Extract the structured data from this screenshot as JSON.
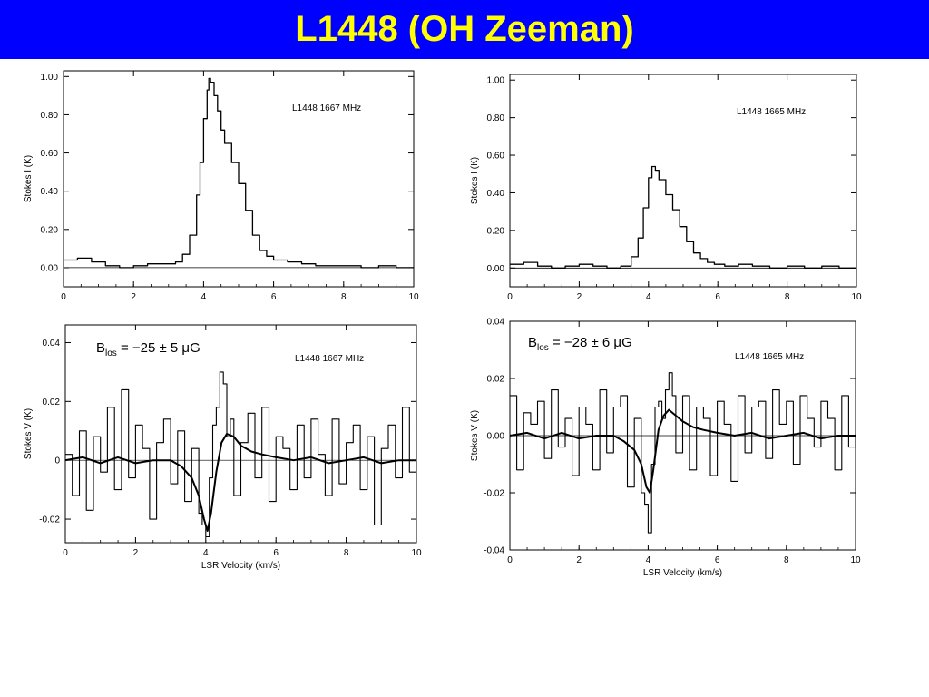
{
  "title": "L1448 (OH Zeeman)",
  "chart_data": [
    {
      "id": "p1",
      "type": "line",
      "label": "L1448 1667 MHz",
      "ylabel": "Stokes I  (K)",
      "xlabel": "",
      "xlim": [
        0,
        10
      ],
      "ylim": [
        -0.1,
        1.03
      ],
      "xticks": [
        0,
        2,
        4,
        6,
        8,
        10
      ],
      "xticklabels": [
        "0",
        "2",
        "4",
        "6",
        "8",
        "10"
      ],
      "yticks": [
        0,
        0.2,
        0.4,
        0.6,
        0.8,
        1.0
      ],
      "yticklabels": [
        "0.00",
        "0.20",
        "0.40",
        "0.60",
        "0.80",
        "1.00"
      ],
      "series": [
        {
          "role": "stokes-I",
          "step": true,
          "width": 1.3,
          "x": [
            0,
            0.4,
            0.8,
            1.2,
            1.6,
            2.0,
            2.4,
            2.8,
            3.2,
            3.4,
            3.6,
            3.8,
            3.9,
            4.0,
            4.1,
            4.15,
            4.2,
            4.3,
            4.4,
            4.5,
            4.6,
            4.8,
            5.0,
            5.2,
            5.4,
            5.6,
            5.8,
            6.0,
            6.4,
            6.8,
            7.2,
            7.6,
            8.0,
            8.5,
            9.0,
            9.5,
            10
          ],
          "y": [
            0.04,
            0.05,
            0.03,
            0.01,
            0.0,
            0.01,
            0.02,
            0.02,
            0.03,
            0.07,
            0.17,
            0.38,
            0.55,
            0.78,
            0.93,
            0.99,
            0.97,
            0.9,
            0.82,
            0.72,
            0.65,
            0.55,
            0.44,
            0.3,
            0.17,
            0.09,
            0.06,
            0.04,
            0.03,
            0.02,
            0.01,
            0.01,
            0.01,
            0.0,
            0.01,
            0.0,
            0.0
          ]
        },
        {
          "role": "zero",
          "step": false,
          "width": 0.8,
          "x": [
            0,
            10
          ],
          "y": [
            0,
            0
          ]
        }
      ]
    },
    {
      "id": "p2",
      "type": "line",
      "label": "L1448 1665 MHz",
      "ylabel": "Stokes I  (K)",
      "xlabel": "",
      "xlim": [
        0,
        10
      ],
      "ylim": [
        -0.1,
        1.03
      ],
      "xticks": [
        0,
        2,
        4,
        6,
        8,
        10
      ],
      "xticklabels": [
        "0",
        "2",
        "4",
        "6",
        "8",
        "10"
      ],
      "yticks": [
        0,
        0.2,
        0.4,
        0.6,
        0.8,
        1.0
      ],
      "yticklabels": [
        "0.00",
        "0.20",
        "0.40",
        "0.60",
        "0.80",
        "1.00"
      ],
      "series": [
        {
          "role": "stokes-I",
          "step": true,
          "width": 1.3,
          "x": [
            0,
            0.4,
            0.8,
            1.2,
            1.6,
            2.0,
            2.4,
            2.8,
            3.2,
            3.5,
            3.7,
            3.85,
            4.0,
            4.1,
            4.2,
            4.3,
            4.5,
            4.7,
            4.9,
            5.1,
            5.3,
            5.5,
            5.7,
            5.9,
            6.2,
            6.6,
            7.0,
            7.5,
            8.0,
            8.5,
            9.0,
            9.5,
            10
          ],
          "y": [
            0.02,
            0.03,
            0.01,
            0.0,
            0.01,
            0.02,
            0.01,
            0.0,
            0.01,
            0.06,
            0.16,
            0.32,
            0.48,
            0.54,
            0.52,
            0.47,
            0.39,
            0.31,
            0.22,
            0.14,
            0.08,
            0.05,
            0.03,
            0.02,
            0.01,
            0.02,
            0.01,
            0.0,
            0.01,
            0.0,
            0.01,
            0.0,
            0.0
          ]
        },
        {
          "role": "zero",
          "step": false,
          "width": 0.8,
          "x": [
            0,
            10
          ],
          "y": [
            0,
            0
          ]
        }
      ]
    },
    {
      "id": "p3",
      "type": "line",
      "label": "L1448 1667 MHz",
      "bfield": {
        "prefix": "B",
        "sub": "los",
        "value": " = −25 ± 5 μG"
      },
      "ylabel": "Stokes V (K)",
      "xlabel": "LSR Velocity (km/s)",
      "xlim": [
        0,
        10
      ],
      "ylim": [
        -0.028,
        0.046
      ],
      "xticks": [
        0,
        2,
        4,
        6,
        8,
        10
      ],
      "xticklabels": [
        "0",
        "2",
        "4",
        "6",
        "8",
        "10"
      ],
      "yticks": [
        -0.02,
        0,
        0.02,
        0.04
      ],
      "yticklabels": [
        "-0.02",
        "0",
        "0.02",
        "0.04"
      ],
      "series": [
        {
          "role": "stokes-V",
          "step": true,
          "width": 1.1,
          "x": [
            0,
            0.2,
            0.4,
            0.6,
            0.8,
            1.0,
            1.2,
            1.4,
            1.6,
            1.8,
            2.0,
            2.2,
            2.4,
            2.6,
            2.8,
            3.0,
            3.2,
            3.4,
            3.6,
            3.8,
            3.9,
            4.0,
            4.1,
            4.2,
            4.3,
            4.4,
            4.5,
            4.6,
            4.7,
            4.8,
            5.0,
            5.2,
            5.4,
            5.6,
            5.8,
            6.0,
            6.2,
            6.4,
            6.6,
            6.8,
            7.0,
            7.2,
            7.4,
            7.6,
            7.8,
            8.0,
            8.2,
            8.4,
            8.6,
            8.8,
            9.0,
            9.2,
            9.4,
            9.6,
            9.8,
            10
          ],
          "y": [
            0.002,
            -0.012,
            0.01,
            -0.017,
            0.008,
            -0.004,
            0.018,
            -0.01,
            0.024,
            -0.006,
            0.012,
            0.004,
            -0.02,
            0.006,
            0.014,
            -0.008,
            0.01,
            -0.014,
            0.004,
            -0.018,
            -0.022,
            -0.026,
            -0.006,
            0.012,
            0.018,
            0.03,
            0.026,
            0.008,
            0.014,
            -0.012,
            0.006,
            0.016,
            -0.006,
            0.018,
            -0.014,
            0.008,
            0.004,
            -0.01,
            0.012,
            -0.006,
            0.014,
            0.002,
            -0.012,
            0.014,
            -0.008,
            0.006,
            0.012,
            -0.01,
            0.008,
            -0.022,
            0.004,
            0.012,
            -0.006,
            0.018,
            -0.004,
            0.002
          ]
        },
        {
          "role": "model",
          "step": false,
          "width": 2.0,
          "x": [
            0,
            0.5,
            1.0,
            1.5,
            2.0,
            2.5,
            3.0,
            3.3,
            3.6,
            3.8,
            3.95,
            4.05,
            4.15,
            4.3,
            4.45,
            4.6,
            4.8,
            5.0,
            5.3,
            5.6,
            6.0,
            6.5,
            7.0,
            7.5,
            8.0,
            8.5,
            9.0,
            9.5,
            10
          ],
          "y": [
            0.0,
            0.001,
            -0.001,
            0.001,
            -0.001,
            0.0,
            0.0,
            -0.002,
            -0.006,
            -0.012,
            -0.02,
            -0.024,
            -0.018,
            -0.004,
            0.006,
            0.009,
            0.008,
            0.005,
            0.003,
            0.002,
            0.001,
            0.0,
            0.001,
            -0.001,
            0.0,
            0.001,
            -0.001,
            0.0,
            0.0
          ]
        },
        {
          "role": "zero",
          "step": false,
          "width": 0.7,
          "x": [
            0,
            10
          ],
          "y": [
            0,
            0
          ]
        }
      ]
    },
    {
      "id": "p4",
      "type": "line",
      "label": "L1448 1665 MHz",
      "bfield": {
        "prefix": "B",
        "sub": "los",
        "value": " = −28 ± 6 μG"
      },
      "ylabel": "Stokes V (K)",
      "xlabel": "LSR Velocity (km/s)",
      "xlim": [
        0,
        10
      ],
      "ylim": [
        -0.04,
        0.04
      ],
      "xticks": [
        0,
        2,
        4,
        6,
        8,
        10
      ],
      "xticklabels": [
        "0",
        "2",
        "4",
        "6",
        "8",
        "10"
      ],
      "yticks": [
        -0.04,
        -0.02,
        0,
        0.02,
        0.04
      ],
      "yticklabels": [
        "-0.04",
        "-0.02",
        "0.00",
        "0.02",
        "0.04"
      ],
      "series": [
        {
          "role": "stokes-V",
          "step": true,
          "width": 1.1,
          "x": [
            0,
            0.2,
            0.4,
            0.6,
            0.8,
            1.0,
            1.2,
            1.4,
            1.6,
            1.8,
            2.0,
            2.2,
            2.4,
            2.6,
            2.8,
            3.0,
            3.2,
            3.4,
            3.6,
            3.8,
            3.9,
            4.0,
            4.1,
            4.2,
            4.3,
            4.4,
            4.5,
            4.6,
            4.7,
            4.8,
            5.0,
            5.2,
            5.4,
            5.6,
            5.8,
            6.0,
            6.2,
            6.4,
            6.6,
            6.8,
            7.0,
            7.2,
            7.4,
            7.6,
            7.8,
            8.0,
            8.2,
            8.4,
            8.6,
            8.8,
            9.0,
            9.2,
            9.4,
            9.6,
            9.8,
            10
          ],
          "y": [
            0.014,
            -0.012,
            0.008,
            0.004,
            0.012,
            -0.008,
            0.016,
            -0.004,
            0.006,
            -0.014,
            0.01,
            0.004,
            -0.012,
            0.016,
            -0.006,
            0.01,
            0.014,
            -0.018,
            0.006,
            -0.02,
            -0.024,
            -0.034,
            -0.01,
            0.01,
            0.012,
            0.006,
            0.016,
            0.022,
            0.014,
            -0.006,
            0.014,
            -0.012,
            0.01,
            0.006,
            -0.014,
            0.012,
            0.004,
            -0.016,
            0.014,
            -0.006,
            0.01,
            0.012,
            -0.008,
            0.016,
            0.004,
            0.012,
            -0.01,
            0.014,
            0.006,
            -0.004,
            0.012,
            0.006,
            -0.012,
            0.014,
            -0.004,
            0.0
          ]
        },
        {
          "role": "model",
          "step": false,
          "width": 2.0,
          "x": [
            0,
            0.5,
            1.0,
            1.5,
            2.0,
            2.5,
            3.0,
            3.3,
            3.6,
            3.8,
            3.95,
            4.05,
            4.15,
            4.3,
            4.45,
            4.6,
            4.8,
            5.0,
            5.3,
            5.6,
            6.0,
            6.5,
            7.0,
            7.5,
            8.0,
            8.5,
            9.0,
            9.5,
            10
          ],
          "y": [
            0.0,
            0.001,
            -0.001,
            0.001,
            -0.001,
            0.0,
            0.0,
            -0.002,
            -0.005,
            -0.01,
            -0.018,
            -0.02,
            -0.012,
            0.002,
            0.007,
            0.009,
            0.007,
            0.005,
            0.003,
            0.002,
            0.001,
            0.0,
            0.001,
            -0.001,
            0.0,
            0.001,
            -0.001,
            0.0,
            0.0
          ]
        },
        {
          "role": "zero",
          "step": false,
          "width": 0.7,
          "x": [
            0,
            10
          ],
          "y": [
            0,
            0
          ]
        }
      ]
    }
  ]
}
